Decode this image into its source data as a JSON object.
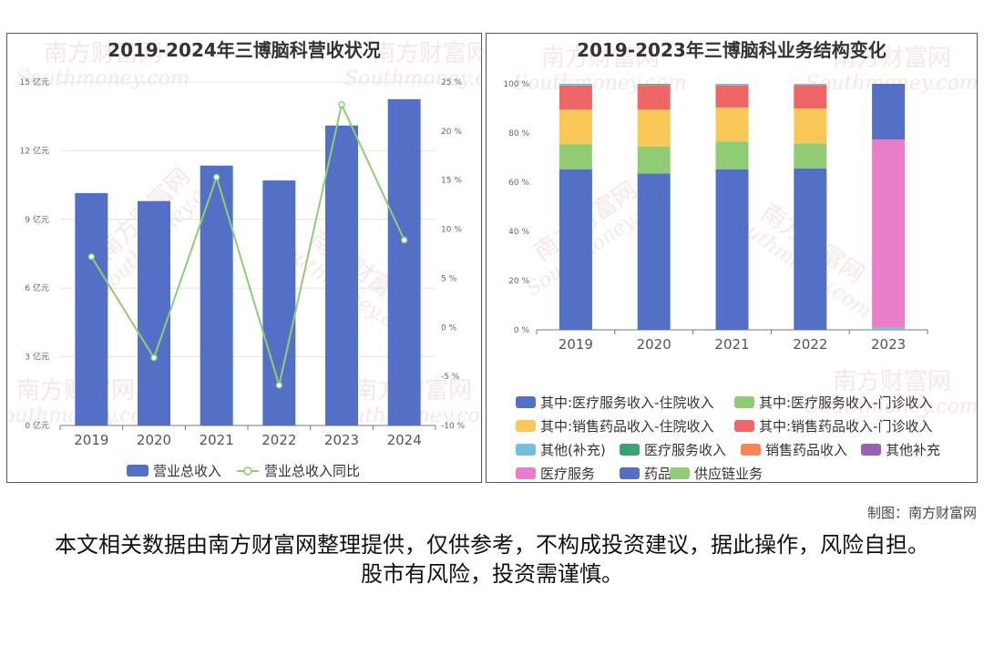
{
  "left_title": "2019-2024年三博脑科营收状况",
  "right_title": "2019-2023年三博脑科业务结构变化",
  "watermark": {
    "cn": "南方财富网",
    "en": "Southmoney.com"
  },
  "source": "制图：南方财富网",
  "disclaimer": "本文相关数据由南方财富网整理提供，仅供参考，不构成投资建议，据此操作，风险自担。股市有风险，投资需谨慎。",
  "chart_data": [
    {
      "type": "bar",
      "title": "2019-2024年三博脑科营收状况",
      "categories": [
        "2019",
        "2020",
        "2021",
        "2022",
        "2023",
        "2024"
      ],
      "y_left_ticks": [
        "0 亿元",
        "3 亿元",
        "6 亿元",
        "9 亿元",
        "12 亿元",
        "15 亿元"
      ],
      "y_left_range": [
        0,
        15
      ],
      "y_right_ticks": [
        "-10 %",
        "-5 %",
        "0 %",
        "5 %",
        "10 %",
        "15 %",
        "20 %",
        "25 %"
      ],
      "y_right_range": [
        -10,
        25
      ],
      "series": [
        {
          "name": "营业总收入",
          "type": "bar",
          "axis": "left",
          "color": "#5470c6",
          "values": [
            10.15,
            9.8,
            11.35,
            10.7,
            13.1,
            14.25
          ]
        },
        {
          "name": "营业总收入同比",
          "type": "line",
          "axis": "right",
          "color": "#91cc75",
          "values": [
            7.2,
            -3.1,
            15.3,
            -5.9,
            22.7,
            8.9
          ]
        }
      ]
    },
    {
      "type": "bar",
      "stacked": true,
      "title": "2019-2023年三博脑科业务结构变化",
      "categories": [
        "2019",
        "2020",
        "2021",
        "2022",
        "2023"
      ],
      "y_ticks": [
        "0 %",
        "20 %",
        "40 %",
        "60 %",
        "80 %",
        "100 %"
      ],
      "y_range": [
        0,
        100
      ],
      "series": [
        {
          "name": "其中:医疗服务收入-住院收入",
          "color": "#5470c6",
          "values": [
            65.3,
            63.5,
            65.3,
            65.6,
            0
          ]
        },
        {
          "name": "其中:医疗服务收入-门诊收入",
          "color": "#91cc75",
          "values": [
            10.2,
            11.0,
            11.3,
            10.2,
            0
          ]
        },
        {
          "name": "其中:销售药品收入-住院收入",
          "color": "#fac858",
          "values": [
            14.0,
            15.0,
            13.8,
            14.2,
            0
          ]
        },
        {
          "name": "其中:销售药品收入-门诊收入",
          "color": "#ee6666",
          "values": [
            9.8,
            10.0,
            9.0,
            9.5,
            0
          ]
        },
        {
          "name": "其他(补充)",
          "color": "#73c0de",
          "values": [
            0.7,
            0.2,
            0.6,
            0.5,
            0.8
          ]
        },
        {
          "name": "医疗服务收入",
          "color": "#3ba272",
          "values": [
            0,
            0.3,
            0,
            0,
            0
          ]
        },
        {
          "name": "销售药品收入",
          "color": "#fc8452",
          "values": [
            0,
            0,
            0,
            0,
            0
          ]
        },
        {
          "name": "其他补充",
          "color": "#9a60b4",
          "values": [
            0,
            0,
            0,
            0,
            0
          ]
        },
        {
          "name": "医疗服务",
          "color": "#ea7ccc",
          "values": [
            0,
            0,
            0,
            0,
            76.6
          ]
        },
        {
          "name": "药品",
          "color": "#5470c6",
          "values": [
            0,
            0,
            0,
            0,
            22.6
          ]
        },
        {
          "name": "供应链业务",
          "color": "#91cc75",
          "values": [
            0,
            0,
            0,
            0,
            0
          ]
        }
      ]
    }
  ]
}
